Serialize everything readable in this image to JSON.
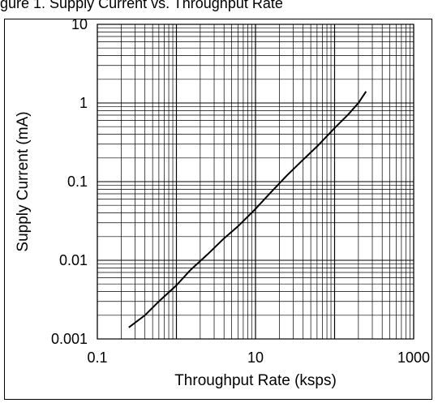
{
  "caption": "gure 1. Supply Current vs. Throughput Rate",
  "chart_data": {
    "type": "line",
    "xlabel": "Throughput Rate (ksps)",
    "ylabel": "Supply Current (mA)",
    "x_scale": "log",
    "y_scale": "log",
    "xlim": [
      0.1,
      1000
    ],
    "ylim": [
      0.001,
      10
    ],
    "x_ticks": [
      "0.1",
      "10",
      "1000"
    ],
    "y_ticks": [
      "0.001",
      "0.01",
      "0.1",
      "1",
      "10"
    ],
    "grid": true,
    "series": [
      {
        "x": [
          0.25,
          0.4,
          0.6,
          1,
          1.5,
          2.5,
          4,
          6,
          10,
          15,
          25,
          40,
          60,
          100,
          150,
          200,
          250
        ],
        "y": [
          0.0014,
          0.002,
          0.003,
          0.0048,
          0.0075,
          0.012,
          0.019,
          0.027,
          0.045,
          0.07,
          0.12,
          0.19,
          0.28,
          0.48,
          0.72,
          1.0,
          1.4
        ]
      }
    ]
  }
}
